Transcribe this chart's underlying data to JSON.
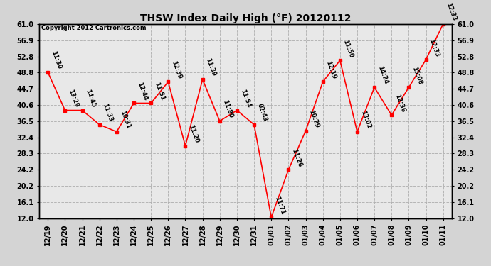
{
  "title": "THSW Index Daily High (°F) 20120112",
  "copyright": "Copyright 2012 Cartronics.com",
  "x_labels": [
    "12/19",
    "12/20",
    "12/21",
    "12/22",
    "12/23",
    "12/24",
    "12/25",
    "12/26",
    "12/27",
    "12/28",
    "12/29",
    "12/30",
    "12/31",
    "01/01",
    "01/02",
    "01/03",
    "01/04",
    "01/05",
    "01/06",
    "01/07",
    "01/08",
    "01/09",
    "01/10",
    "01/11"
  ],
  "y_values": [
    48.8,
    39.2,
    39.2,
    35.6,
    33.8,
    41.0,
    41.0,
    46.4,
    30.2,
    47.0,
    36.5,
    39.2,
    35.6,
    12.2,
    24.2,
    34.0,
    46.4,
    51.8,
    33.8,
    45.0,
    38.0,
    45.0,
    52.0,
    61.0
  ],
  "point_labels": [
    "11:30",
    "13:29",
    "14:45",
    "11:33",
    "10:31",
    "12:44",
    "11:51",
    "12:39",
    "11:20",
    "11:39",
    "11:80",
    "11:54",
    "02:43",
    "11:71",
    "11:26",
    "10:29",
    "12:19",
    "11:50",
    "13:02",
    "14:24",
    "12:36",
    "15:08",
    "12:33",
    ""
  ],
  "ylim_min": 12.0,
  "ylim_max": 61.0,
  "yticks": [
    12.0,
    16.1,
    20.2,
    24.2,
    28.3,
    32.4,
    36.5,
    40.6,
    44.7,
    48.8,
    52.8,
    56.9,
    61.0
  ],
  "line_color": "red",
  "marker_color": "red",
  "bg_color": "#d4d4d4",
  "plot_bg_color": "#e8e8e8",
  "grid_color": "#b0b0b0",
  "title_fontsize": 10,
  "tick_fontsize": 7,
  "label_fontsize": 6,
  "copyright_fontsize": 6
}
